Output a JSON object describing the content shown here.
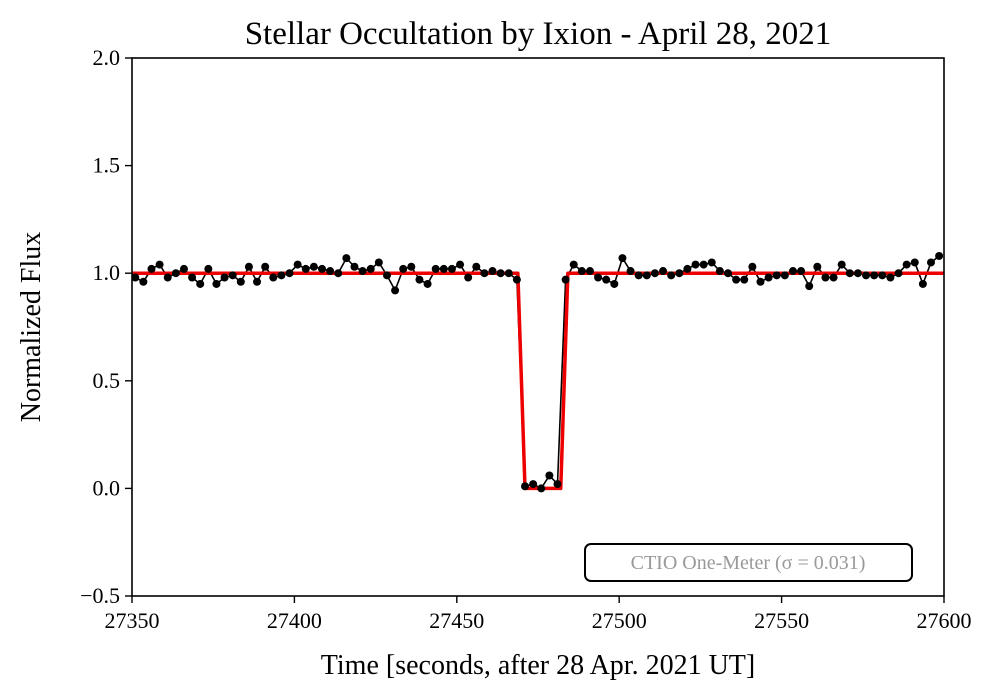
{
  "chart_data": {
    "type": "line",
    "title": "Stellar Occultation by Ixion - April 28, 2021",
    "x_label": "Time [seconds, after 28 Apr. 2021 UT]",
    "y_label": "Normalized Flux",
    "annotation": "CTIO One-Meter (σ = 0.031)",
    "xlim": [
      27350,
      27600
    ],
    "ylim": [
      -0.5,
      2.0
    ],
    "xticks": [
      27350,
      27400,
      27450,
      27500,
      27550,
      27600
    ],
    "yticks": [
      {
        "value": -0.5,
        "label": "−0.5"
      },
      {
        "value": 0,
        "label": "0.0"
      },
      {
        "value": 0.5,
        "label": "0.5"
      },
      {
        "value": 1,
        "label": "1.0"
      },
      {
        "value": 1.5,
        "label": "1.5"
      },
      {
        "value": 2,
        "label": "2.0"
      }
    ],
    "grid": false,
    "series": [
      {
        "color": "#000000",
        "markers": true,
        "x": [
          27351,
          27353.5,
          27356,
          27358.5,
          27361,
          27363.5,
          27366,
          27368.5,
          27371,
          27373.5,
          27376,
          27378.5,
          27381,
          27383.5,
          27386,
          27388.5,
          27391,
          27393.5,
          27396,
          27398.5,
          27401,
          27403.5,
          27406,
          27408.5,
          27411,
          27413.5,
          27416,
          27418.5,
          27421,
          27423.5,
          27426,
          27428.5,
          27431,
          27433.5,
          27436,
          27438.5,
          27441,
          27443.5,
          27446,
          27448.5,
          27451,
          27453.5,
          27456,
          27458.5,
          27461,
          27463.5,
          27466,
          27468.5,
          27471,
          27473.5,
          27476,
          27478.5,
          27481,
          27483.5,
          27486,
          27488.5,
          27491,
          27493.5,
          27496,
          27498.5,
          27501,
          27503.5,
          27506,
          27508.5,
          27511,
          27513.5,
          27516,
          27518.5,
          27521,
          27523.5,
          27526,
          27528.5,
          27531,
          27533.5,
          27536,
          27538.5,
          27541,
          27543.5,
          27546,
          27548.5,
          27551,
          27553.5,
          27556,
          27558.5,
          27561,
          27563.5,
          27566,
          27568.5,
          27571,
          27573.5,
          27576,
          27578.5,
          27581,
          27583.5,
          27586,
          27588.5,
          27591,
          27593.5,
          27596,
          27598.5
        ],
        "values": [
          0.98,
          0.96,
          1.02,
          1.04,
          0.98,
          1.0,
          1.02,
          0.98,
          0.95,
          1.02,
          0.95,
          0.98,
          0.99,
          0.96,
          1.03,
          0.96,
          1.03,
          0.98,
          0.99,
          1.0,
          1.04,
          1.02,
          1.03,
          1.02,
          1.01,
          1.0,
          1.07,
          1.03,
          1.01,
          1.02,
          1.05,
          0.99,
          0.92,
          1.02,
          1.03,
          0.97,
          0.95,
          1.02,
          1.02,
          1.02,
          1.04,
          0.98,
          1.03,
          1.0,
          1.01,
          1.0,
          1.0,
          0.97,
          0.01,
          0.02,
          0.0,
          0.06,
          0.02,
          0.97,
          1.04,
          1.01,
          1.01,
          0.98,
          0.97,
          0.95,
          1.07,
          1.01,
          0.99,
          0.99,
          1.0,
          1.01,
          0.99,
          1.0,
          1.02,
          1.04,
          1.04,
          1.05,
          1.01,
          1.0,
          0.97,
          0.97,
          1.03,
          0.96,
          0.98,
          0.99,
          0.99,
          1.01,
          1.01,
          0.94,
          1.03,
          0.98,
          0.98,
          1.04,
          1.0,
          1.0,
          0.99,
          0.99,
          0.99,
          0.98,
          1.0,
          1.04,
          1.05,
          0.95,
          1.05,
          1.08
        ]
      },
      {
        "color": "#ee0000",
        "markers": false,
        "x": [
          27350,
          27468.8,
          27471,
          27482,
          27484.2,
          27600
        ],
        "values": [
          1,
          1,
          0,
          0,
          1,
          1
        ]
      }
    ]
  }
}
